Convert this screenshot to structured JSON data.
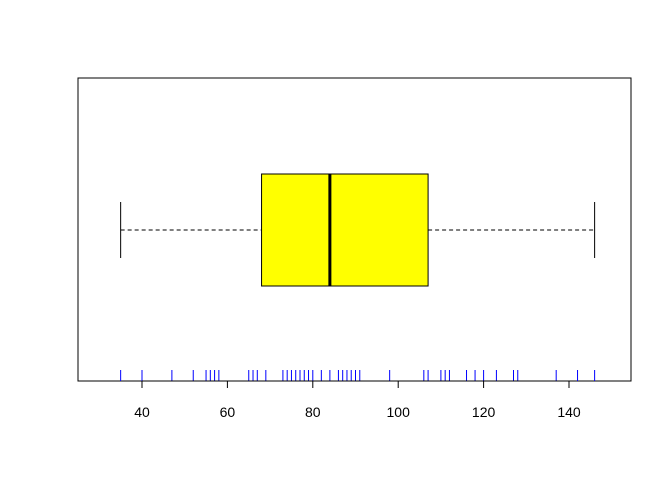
{
  "chart_data": {
    "type": "boxplot",
    "orientation": "horizontal",
    "title": "",
    "xlabel": "",
    "ylabel": "",
    "xlim": [
      30,
      150
    ],
    "x_ticks": [
      40,
      60,
      80,
      100,
      120,
      140
    ],
    "x_tick_labels": [
      "40",
      "60",
      "80",
      "100",
      "120",
      "140"
    ],
    "grid": false,
    "legend": "none",
    "box": {
      "min": 35,
      "q1": 68,
      "median": 84,
      "q3": 107,
      "max": 146
    },
    "rug": [
      35,
      40,
      47,
      52,
      55,
      56,
      57,
      58,
      65,
      66,
      67,
      69,
      73,
      74,
      75,
      76,
      77,
      78,
      79,
      80,
      82,
      84,
      86,
      87,
      88,
      89,
      90,
      91,
      98,
      106,
      107,
      110,
      111,
      112,
      116,
      118,
      120,
      123,
      127,
      128,
      137,
      142,
      146
    ],
    "colors": {
      "box_fill": "#ffff00",
      "box_border": "#000000",
      "median_line": "#000000",
      "whisker": "#000000",
      "rug": "#0000ff",
      "frame": "#000000"
    }
  }
}
